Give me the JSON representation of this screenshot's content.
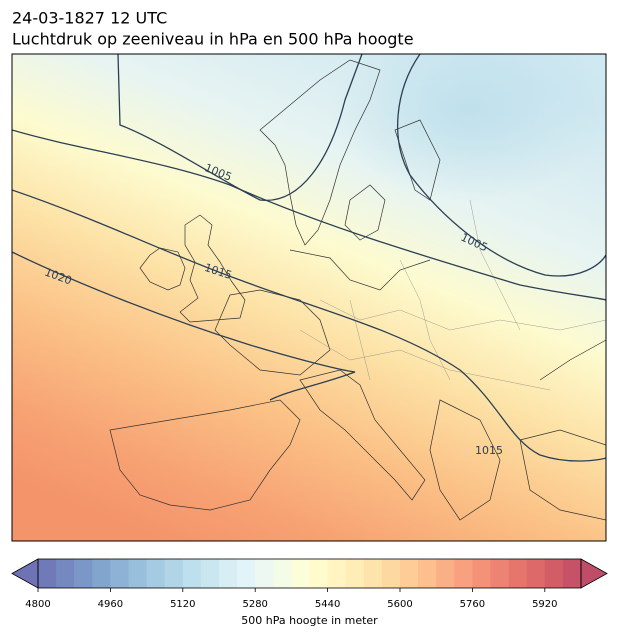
{
  "header": {
    "title": "24-03-1827 12 UTC",
    "subtitle": "Luchtdruk op zeeniveau in hPa en 500 hPa hoogte"
  },
  "map": {
    "contour_labels": [
      1005,
      1005,
      1015,
      1020,
      1015
    ]
  },
  "colorbar": {
    "label": "500 hPa hoogte in meter",
    "lim": [
      4800,
      6000
    ],
    "step": 40,
    "ticks": [
      4800,
      4960,
      5120,
      5280,
      5440,
      5600,
      5760,
      5920
    ]
  }
}
